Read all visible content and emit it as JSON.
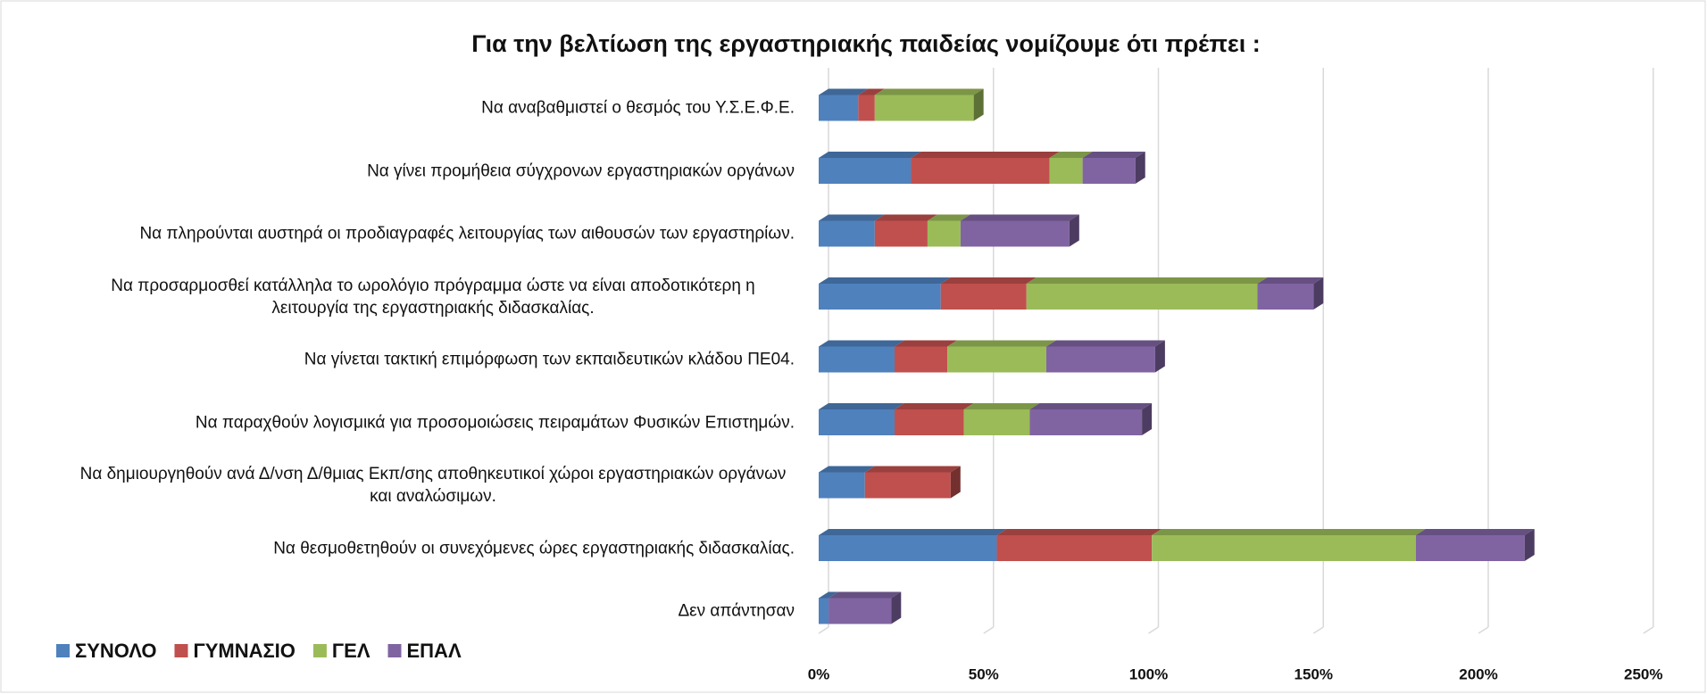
{
  "chart_data": {
    "type": "stacked_barh",
    "title": "Για την βελτίωση της εργαστηριακής παιδείας νομίζουμε ότι πρέπει :",
    "categories": [
      "Να αναβαθμιστεί ο θεσμός  του Υ.Σ.Ε.Φ.Ε.",
      "Να γίνει προμήθεια σύγχρονων εργαστηριακών οργάνων",
      "Να πληρούνται αυστηρά οι προδιαγραφές λειτουργίας των αιθουσών των εργαστηρίων.",
      "Να προσαρμοσθεί κατάλληλα το ωρολόγιο πρόγραμμα ώστε να είναι αποδοτικότερη η λειτουργία της εργαστηριακής διδασκαλίας.",
      "Να γίνεται τακτική επιμόρφωση των εκπαιδευτικών κλάδου ΠΕ04.",
      "Να παραχθούν λογισμικά για προσομοιώσεις πειραμάτων Φυσικών Επιστημών.",
      "Να δημιουργηθούν ανά Δ/νση Δ/θμιας Εκπ/σης αποθηκευτικοί χώροι εργαστηριακών οργάνων και αναλώσιμων.",
      "Να θεσμοθετηθούν οι συνεχόμενες ώρες εργαστηριακής διδασκαλίας.",
      "Δεν απάντησαν"
    ],
    "series": [
      {
        "name": "ΣΥΝΟΛΟ",
        "color": "#4f81bd",
        "values": [
          12,
          28,
          17,
          37,
          23,
          23,
          14,
          54,
          3
        ]
      },
      {
        "name": "ΓΥΜΝΑΣΙΟ",
        "color": "#c0504d",
        "values": [
          5,
          42,
          16,
          26,
          16,
          21,
          26,
          47,
          0
        ]
      },
      {
        "name": "ΓΕΛ",
        "color": "#9bbb59",
        "values": [
          30,
          10,
          10,
          70,
          30,
          20,
          0,
          80,
          0
        ]
      },
      {
        "name": "ΕΠΑΛ",
        "color": "#8064a2",
        "values": [
          0,
          16,
          33,
          17,
          33,
          34,
          0,
          33,
          19
        ]
      }
    ],
    "xlim": [
      0,
      250
    ],
    "xticks": [
      {
        "value": 0,
        "label": "0%"
      },
      {
        "value": 50,
        "label": "50%"
      },
      {
        "value": 100,
        "label": "100%"
      },
      {
        "value": 150,
        "label": "150%"
      },
      {
        "value": 200,
        "label": "200%"
      },
      {
        "value": 250,
        "label": "250%"
      }
    ],
    "grid": true,
    "legend": "bottom-left"
  }
}
